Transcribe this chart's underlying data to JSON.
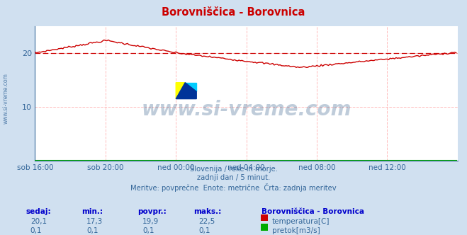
{
  "title": "Borovniščica - Borovnica",
  "title_color": "#cc0000",
  "bg_color": "#d0e0f0",
  "plot_bg_color": "#ffffff",
  "x_labels": [
    "sob 16:00",
    "sob 20:00",
    "ned 00:00",
    "ned 04:00",
    "ned 08:00",
    "ned 12:00"
  ],
  "x_ticks": [
    0,
    48,
    96,
    144,
    192,
    240
  ],
  "x_max": 288,
  "n_points": 288,
  "ylim": [
    0,
    25
  ],
  "yticks": [
    10,
    20
  ],
  "grid_color": "#ffbbbb",
  "avg_line_y": 19.9,
  "avg_line_color": "#cc0000",
  "temp_color": "#cc0000",
  "flow_color": "#00aa00",
  "watermark_text": "www.si-vreme.com",
  "watermark_color": "#1a4a7a",
  "watermark_alpha": 0.28,
  "subtitle_lines": [
    "Slovenija / reke in morje.",
    "zadnji dan / 5 minut.",
    "Meritve: povprečne  Enote: metrične  Črta: zadnja meritev"
  ],
  "subtitle_color": "#336699",
  "table_headers": [
    "sedaj:",
    "min.:",
    "povpr.:",
    "maks.:"
  ],
  "table_header_color": "#0000cc",
  "table_values_temp": [
    "20,1",
    "17,3",
    "19,9",
    "22,5"
  ],
  "table_values_flow": [
    "0,1",
    "0,1",
    "0,1",
    "0,1"
  ],
  "table_value_color": "#336699",
  "legend_title": "Borovniščica - Borovnica",
  "legend_temp_label": "temperatura[C]",
  "legend_flow_label": "pretok[m3/s]",
  "axis_color": "#336699",
  "ylabel_text": "www.si-vreme.com",
  "ylabel_color": "#336699",
  "temp_profile": {
    "seg0_end": 0.06,
    "seg0_start_y": 20.0,
    "seg0_end_y": 20.8,
    "seg1_end": 0.17,
    "seg1_end_y": 22.3,
    "seg2_end": 0.335,
    "seg2_end_y": 20.0,
    "seg3_end": 0.63,
    "seg3_end_y": 17.3,
    "seg4_end": 1.0,
    "seg4_end_y": 20.1
  }
}
